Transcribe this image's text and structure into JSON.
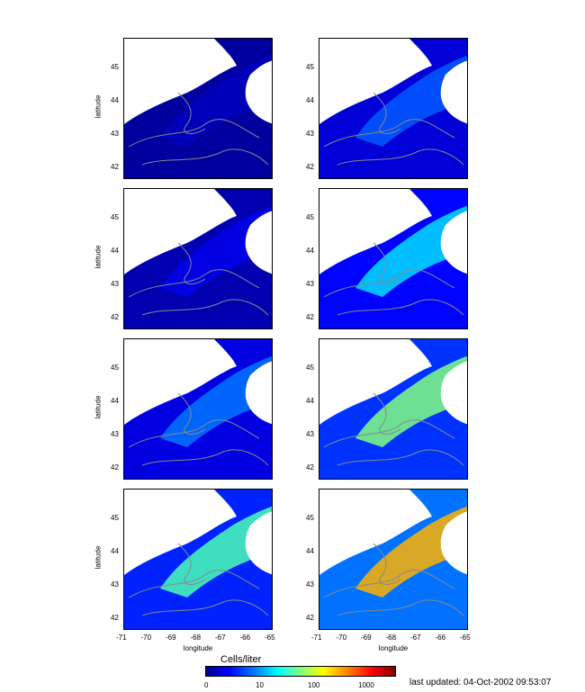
{
  "axes": {
    "ylabel": "latitude",
    "xlabel": "longitude",
    "yticks": [
      "45",
      "44",
      "43",
      "42"
    ],
    "xticks": [
      "-71",
      "-70",
      "-69",
      "-68",
      "-67",
      "-66",
      "-65"
    ]
  },
  "colorbar": {
    "title": "Cells/liter",
    "ticks": [
      "0",
      "10",
      "100",
      "1000"
    ]
  },
  "timestamp": "last updated: 04-Oct-2002 09:53:07",
  "panels": [
    {
      "id": "left-1",
      "level": 0.05
    },
    {
      "id": "right-1",
      "level": 0.22
    },
    {
      "id": "left-2",
      "level": 0.1
    },
    {
      "id": "right-2",
      "level": 0.35
    },
    {
      "id": "left-3",
      "level": 0.25
    },
    {
      "id": "right-3",
      "level": 0.5
    },
    {
      "id": "left-4",
      "level": 0.45
    },
    {
      "id": "right-4",
      "level": 0.7
    }
  ],
  "colors": {
    "ocean_low": "#00008f",
    "land": "#ffffff",
    "contour": "#888888"
  }
}
